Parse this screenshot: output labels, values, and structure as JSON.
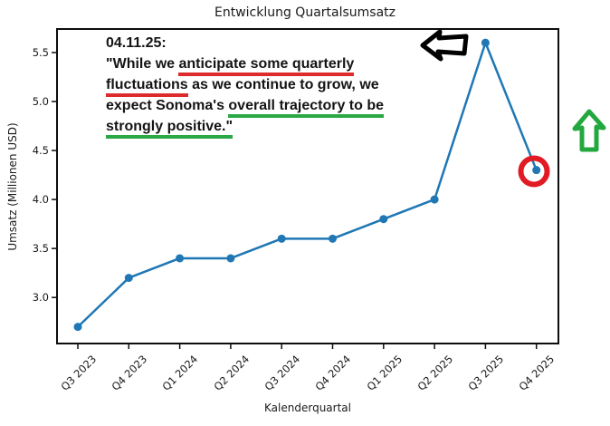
{
  "figure": {
    "title": "Entwicklung Quartalsumsatz"
  },
  "chart_data": {
    "type": "line",
    "title": "Entwicklung Quartalsumsatz",
    "xlabel": "Kalenderquartal",
    "ylabel": "Umsatz (Millionen USD)",
    "categories": [
      "Q3 2023",
      "Q4 2023",
      "Q1 2024",
      "Q2 2024",
      "Q3 2024",
      "Q4 2024",
      "Q1 2025",
      "Q2 2025",
      "Q3 2025",
      "Q4 2025"
    ],
    "values": [
      2.7,
      3.2,
      3.4,
      3.4,
      3.6,
      3.6,
      3.8,
      4.0,
      5.6,
      4.3
    ],
    "yticks": [
      "3.0",
      "3.5",
      "4.0",
      "4.5",
      "5.0",
      "5.5"
    ],
    "ylim": [
      2.53,
      5.74
    ],
    "grid": false,
    "legend": "none",
    "line_color": "#1f77b4",
    "marker": "circle"
  },
  "annotation": {
    "heading": "04.11.25:",
    "lines": [
      {
        "segments": [
          {
            "text": "\"While we ",
            "underline": "none"
          },
          {
            "text": "anticipate some quarterly",
            "underline": "red"
          }
        ]
      },
      {
        "segments": [
          {
            "text": "fluctuations",
            "underline": "red"
          },
          {
            "text": " as we continue to grow, we",
            "underline": "none"
          }
        ]
      },
      {
        "segments": [
          {
            "text": "expect Sonoma's ",
            "underline": "none"
          },
          {
            "text": "overall trajectory to be",
            "underline": "green"
          }
        ]
      },
      {
        "segments": [
          {
            "text": "strongly positive.\"",
            "underline": "green"
          }
        ]
      }
    ],
    "colors": {
      "red": "#dd2b2b",
      "green": "#2aa845"
    }
  },
  "overlays": {
    "black_arrow": {
      "direction": "left",
      "color": "#000000",
      "target": "Q3 2025"
    },
    "green_arrow": {
      "direction": "up",
      "color": "#23a83f"
    },
    "red_circle": {
      "color": "#e01b24",
      "target": "Q4 2025"
    }
  }
}
